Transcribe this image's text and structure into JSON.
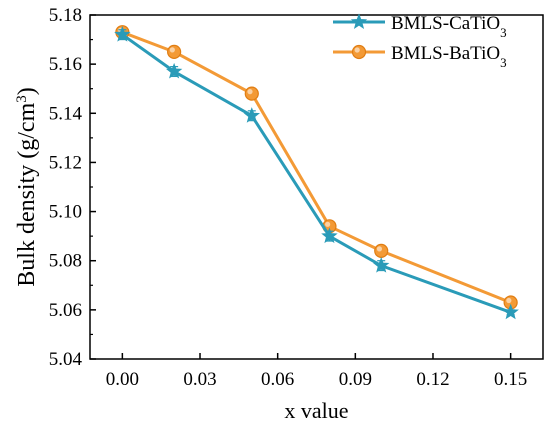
{
  "chart_data": {
    "type": "line",
    "xlabel": "x value",
    "ylabel": {
      "main": "Bulk density (g/cm",
      "sup": "3",
      "close": ")"
    },
    "xlim": [
      -0.0125,
      0.1625
    ],
    "ylim": [
      5.04,
      5.18
    ],
    "xticks": [
      0.0,
      0.03,
      0.06,
      0.09,
      0.12,
      0.15
    ],
    "xtick_labels": [
      "0.00",
      "0.03",
      "0.06",
      "0.09",
      "0.12",
      "0.15"
    ],
    "yticks": [
      5.04,
      5.06,
      5.08,
      5.1,
      5.12,
      5.14,
      5.16,
      5.18
    ],
    "ytick_labels": [
      "5.04",
      "5.06",
      "5.08",
      "5.10",
      "5.12",
      "5.14",
      "5.16",
      "5.18"
    ],
    "grid": false,
    "legend_position": "top-right",
    "x": [
      0.0,
      0.02,
      0.05,
      0.08,
      0.1,
      0.15
    ],
    "series": [
      {
        "name": "BMLS-CaTiO",
        "name_sub": "3",
        "marker": "star",
        "color": "#2a9bb8",
        "values": [
          5.172,
          5.157,
          5.139,
          5.09,
          5.078,
          5.059
        ],
        "error": [
          0.002,
          0.002,
          0.002,
          0.002,
          0.002,
          0.001
        ]
      },
      {
        "name": "BMLS-BaTiO",
        "name_sub": "3",
        "marker": "circle",
        "color": "#f39a36",
        "values": [
          5.173,
          5.165,
          5.148,
          5.094,
          5.084,
          5.063
        ],
        "error": [
          0.002,
          0.002,
          0.002,
          0.002,
          0.002,
          0.001
        ]
      }
    ]
  }
}
